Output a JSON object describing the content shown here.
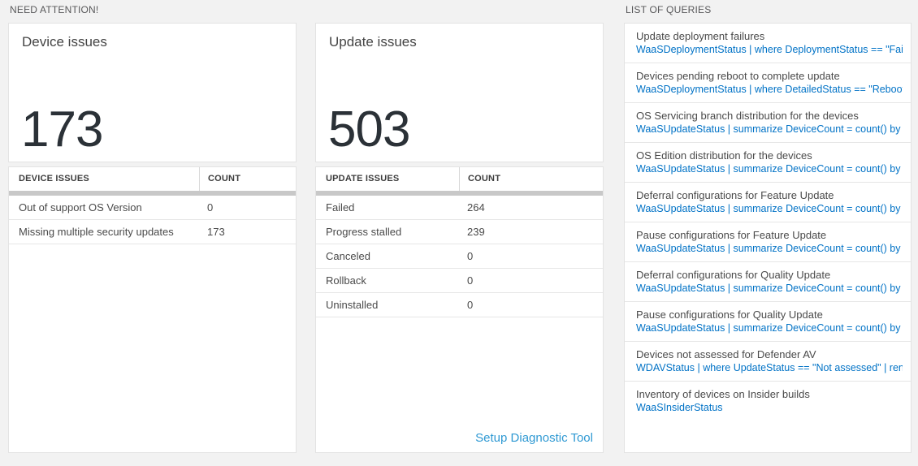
{
  "colors": {
    "page_background": "#f2f2f2",
    "card_background": "#ffffff",
    "query_link_blue": "#0072c6",
    "setup_link_blue": "#2f99d3",
    "big_number_color": "#2b3137",
    "thick_bar_gray": "#c8c8c8"
  },
  "need_attention": {
    "label": "NEED ATTENTION!",
    "tiles": [
      {
        "title": "Device issues",
        "big_number": "173",
        "table": {
          "headers": [
            "DEVICE ISSUES",
            "COUNT"
          ],
          "rows": [
            {
              "label": "Out of support OS Version",
              "count": "0"
            },
            {
              "label": "Missing multiple security updates",
              "count": "173"
            }
          ]
        },
        "footer_link": ""
      },
      {
        "title": "Update issues",
        "big_number": "503",
        "table": {
          "headers": [
            "UPDATE ISSUES",
            "COUNT"
          ],
          "rows": [
            {
              "label": "Failed",
              "count": "264"
            },
            {
              "label": "Progress stalled",
              "count": "239"
            },
            {
              "label": "Canceled",
              "count": "0"
            },
            {
              "label": "Rollback",
              "count": "0"
            },
            {
              "label": "Uninstalled",
              "count": "0"
            }
          ]
        },
        "footer_link": "Setup Diagnostic Tool"
      }
    ]
  },
  "queries": {
    "label": "LIST OF QUERIES",
    "items": [
      {
        "title": "Update deployment failures",
        "query": "WaaSDeploymentStatus | where DeploymentStatus == \"Failed\" |..."
      },
      {
        "title": "Devices pending reboot to complete update",
        "query": "WaaSDeploymentStatus | where DetailedStatus == \"Reboot pend..."
      },
      {
        "title": "OS Servicing branch distribution for the devices",
        "query": "WaaSUpdateStatus | summarize DeviceCount = count() by OSSer..."
      },
      {
        "title": "OS Edition distribution for the devices",
        "query": "WaaSUpdateStatus | summarize DeviceCount = count() by OSEdit..."
      },
      {
        "title": "Deferral configurations for Feature Update",
        "query": "WaaSUpdateStatus | summarize DeviceCount = count() by Featur..."
      },
      {
        "title": "Pause configurations for Feature Update",
        "query": "WaaSUpdateStatus | summarize DeviceCount = count() by Featur..."
      },
      {
        "title": "Deferral configurations for Quality Update",
        "query": "WaaSUpdateStatus | summarize DeviceCount = count() by Qualit..."
      },
      {
        "title": "Pause configurations for Quality Update",
        "query": "WaaSUpdateStatus | summarize DeviceCount = count() by Qualit..."
      },
      {
        "title": "Devices not assessed for Defender AV",
        "query": "WDAVStatus | where UpdateStatus == \"Not assessed\" | render ta..."
      },
      {
        "title": "Inventory of devices on Insider builds",
        "query": "WaaSInsiderStatus"
      }
    ]
  }
}
